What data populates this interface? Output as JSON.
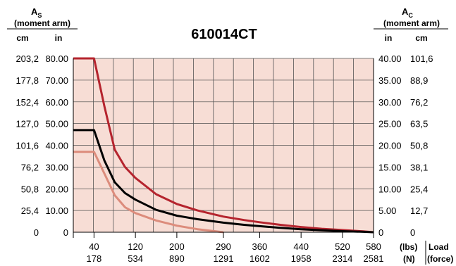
{
  "chart_data": {
    "type": "line",
    "title": "610014CT",
    "left_axis": {
      "symbol": "A",
      "subscript": "S",
      "label": "(moment arm)",
      "unit_primary": "cm",
      "unit_secondary": "in",
      "ticks_in": [
        "0",
        "10.00",
        "20.00",
        "30.00",
        "40.00",
        "50.00",
        "60.00",
        "70.00",
        "80.00"
      ],
      "ticks_cm": [
        "0",
        "25,4",
        "50,8",
        "76,2",
        "101,6",
        "127,0",
        "152,4",
        "177,8",
        "203,2"
      ]
    },
    "right_axis": {
      "symbol": "A",
      "subscript": "C",
      "label": "(moment arm)",
      "unit_primary": "in",
      "unit_secondary": "cm",
      "ticks_in": [
        "0",
        "5.00",
        "10.00",
        "15.00",
        "20.00",
        "25.00",
        "30.00",
        "35.00",
        "40.00"
      ],
      "ticks_cm": [
        "0",
        "12,7",
        "25,4",
        "38,1",
        "50,8",
        "63,5",
        "76,2",
        "88,9",
        "101,6"
      ]
    },
    "x_axis": {
      "ticks_lbs": [
        "40",
        "120",
        "200",
        "290",
        "360",
        "440",
        "520",
        "580"
      ],
      "ticks_n": [
        "178",
        "534",
        "890",
        "1291",
        "1602",
        "1958",
        "2314",
        "2581"
      ],
      "unit_lbs": "(lbs)",
      "unit_n": "(N)",
      "label_line1": "Load",
      "label_line2": "(force)"
    },
    "xlim": [
      0,
      580
    ],
    "ylim": [
      0,
      80
    ],
    "grid": true,
    "background_color": "#f7ddd5",
    "series": [
      {
        "color": "#b5242e",
        "x": [
          0,
          40,
          60,
          80,
          100,
          120,
          160,
          200,
          240,
          290,
          330,
          360,
          400,
          440,
          480,
          520,
          560,
          580
        ],
        "y": [
          80,
          80,
          58,
          38,
          30,
          25,
          17.5,
          13,
          10,
          7.2,
          5.6,
          4.6,
          3.4,
          2.4,
          1.6,
          1,
          0.4,
          0
        ]
      },
      {
        "color": "#000000",
        "x": [
          0,
          40,
          60,
          80,
          100,
          120,
          160,
          200,
          240,
          290,
          330,
          360,
          400,
          440,
          480,
          520,
          560,
          580
        ],
        "y": [
          47,
          47,
          33,
          23,
          18,
          15,
          10.3,
          7.6,
          6,
          4.4,
          3.4,
          2.8,
          2,
          1.4,
          0.9,
          0.5,
          0.2,
          0
        ]
      },
      {
        "color": "#dc8c7c",
        "x": [
          0,
          40,
          60,
          80,
          100,
          120,
          160,
          200,
          240,
          290
        ],
        "y": [
          37,
          37,
          27,
          17,
          11.5,
          8.8,
          5.4,
          3,
          1.4,
          0
        ]
      }
    ]
  }
}
